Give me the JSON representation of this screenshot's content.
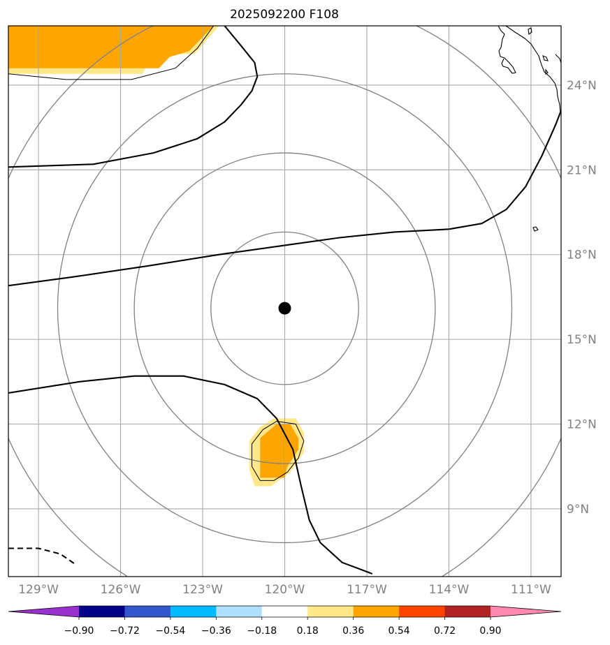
{
  "chart_data": {
    "type": "contour-map",
    "title": "2025092200 F108",
    "projection": "Plate Carree (lon/lat)",
    "lon_range": [
      -130.1,
      -109.9
    ],
    "lat_range": [
      6.6,
      26.1
    ],
    "xlabel": "",
    "ylabel": "",
    "grid": true,
    "lon_ticks": [
      -129,
      -126,
      -123,
      -120,
      -117,
      -114,
      -111
    ],
    "lon_tick_labels": [
      "129°W",
      "126°W",
      "123°W",
      "120°W",
      "117°W",
      "114°W",
      "111°W"
    ],
    "lat_ticks": [
      9,
      12,
      15,
      18,
      21,
      24
    ],
    "lat_tick_labels": [
      "9°N",
      "12°N",
      "15°N",
      "18°N",
      "21°N",
      "24°N"
    ],
    "center": {
      "lon": -120.0,
      "lat": 16.1
    },
    "range_rings_deg": [
      2.7,
      5.5,
      8.3,
      11.1
    ],
    "colorbar": {
      "boundaries": [
        -0.9,
        -0.72,
        -0.54,
        -0.36,
        -0.18,
        0.18,
        0.36,
        0.54,
        0.72,
        0.9
      ],
      "tick_labels": [
        "−0.90",
        "−0.72",
        "−0.54",
        "−0.36",
        "−0.18",
        "0.18",
        "0.36",
        "0.54",
        "0.72",
        "0.90"
      ],
      "under_color": "#9932cc",
      "over_color": "#ff88b0",
      "colors": [
        "#000088",
        "#3355cc",
        "#00bbff",
        "#b0e0ff",
        "#ffffff",
        "#ffe88a",
        "#ffa500",
        "#ff4400",
        "#b22222"
      ],
      "extend": "both"
    },
    "filled_regions": [
      {
        "level": 0.18,
        "color": "#ffe88a",
        "polygon": [
          [
            -130.1,
            26.1
          ],
          [
            -122.4,
            26.1
          ],
          [
            -123.3,
            25.1
          ],
          [
            -124.8,
            25.1
          ],
          [
            -125.2,
            24.4
          ],
          [
            -130.1,
            24.4
          ]
        ]
      },
      {
        "level": 0.36,
        "color": "#ffa500",
        "polygon": [
          [
            -130.1,
            26.1
          ],
          [
            -122.6,
            26.1
          ],
          [
            -123.5,
            25.2
          ],
          [
            -124.2,
            25.0
          ],
          [
            -124.6,
            24.6
          ],
          [
            -130.1,
            24.6
          ]
        ]
      },
      {
        "level": 0.18,
        "color": "#ffe88a",
        "polygon": [
          [
            -120.4,
            12.2
          ],
          [
            -119.6,
            12.2
          ],
          [
            -119.3,
            11.7
          ],
          [
            -119.3,
            11.0
          ],
          [
            -119.8,
            10.3
          ],
          [
            -120.5,
            9.8
          ],
          [
            -121.1,
            9.8
          ],
          [
            -121.3,
            10.4
          ],
          [
            -121.3,
            11.4
          ],
          [
            -120.9,
            11.9
          ]
        ]
      },
      {
        "level": 0.36,
        "color": "#ffa500",
        "polygon": [
          [
            -120.3,
            12.0
          ],
          [
            -119.8,
            12.0
          ],
          [
            -119.5,
            11.5
          ],
          [
            -119.5,
            11.1
          ],
          [
            -119.9,
            10.5
          ],
          [
            -120.0,
            10.1
          ],
          [
            -120.9,
            10.1
          ],
          [
            -120.9,
            11.5
          ]
        ]
      }
    ],
    "contour_lines": [
      {
        "style": "solid",
        "points": [
          [
            -122.2,
            26.1
          ],
          [
            -121.6,
            25.4
          ],
          [
            -121.1,
            24.8
          ],
          [
            -121.0,
            24.3
          ],
          [
            -121.2,
            23.8
          ],
          [
            -121.6,
            23.3
          ],
          [
            -122.2,
            22.7
          ],
          [
            -123.2,
            22.1
          ],
          [
            -124.8,
            21.6
          ],
          [
            -127.0,
            21.2
          ],
          [
            -130.1,
            21.1
          ]
        ]
      },
      {
        "style": "solid",
        "points": [
          [
            -130.1,
            16.9
          ],
          [
            -127.8,
            17.2
          ],
          [
            -125.0,
            17.6
          ],
          [
            -122.4,
            18.0
          ],
          [
            -120.2,
            18.3
          ],
          [
            -118.0,
            18.6
          ],
          [
            -116.0,
            18.8
          ],
          [
            -114.0,
            18.9
          ],
          [
            -112.8,
            19.1
          ],
          [
            -111.9,
            19.6
          ],
          [
            -111.2,
            20.4
          ],
          [
            -110.6,
            21.5
          ],
          [
            -110.1,
            22.6
          ],
          [
            -109.9,
            23.1
          ]
        ]
      },
      {
        "style": "solid",
        "points": [
          [
            -130.1,
            13.1
          ],
          [
            -127.5,
            13.5
          ],
          [
            -125.5,
            13.7
          ],
          [
            -123.7,
            13.7
          ],
          [
            -122.2,
            13.4
          ],
          [
            -121.0,
            12.9
          ],
          [
            -120.3,
            12.2
          ],
          [
            -119.7,
            11.1
          ],
          [
            -119.4,
            9.8
          ],
          [
            -119.1,
            8.6
          ],
          [
            -118.7,
            7.8
          ],
          [
            -117.9,
            7.1
          ],
          [
            -116.8,
            6.7
          ]
        ]
      },
      {
        "style": "thin",
        "points": [
          [
            -130.1,
            24.4
          ],
          [
            -128.0,
            24.2
          ],
          [
            -125.6,
            24.2
          ],
          [
            -124.0,
            24.6
          ],
          [
            -123.2,
            25.3
          ],
          [
            -122.6,
            26.1
          ]
        ]
      },
      {
        "style": "thin",
        "points": [
          [
            -120.3,
            12.1
          ],
          [
            -119.6,
            12.0
          ],
          [
            -119.3,
            11.4
          ],
          [
            -119.5,
            10.8
          ],
          [
            -119.9,
            10.3
          ],
          [
            -120.4,
            10.0
          ],
          [
            -120.9,
            10.0
          ],
          [
            -121.2,
            10.5
          ],
          [
            -121.2,
            11.3
          ],
          [
            -120.8,
            11.8
          ],
          [
            -120.3,
            12.1
          ]
        ]
      },
      {
        "style": "dashed",
        "points": [
          [
            -130.1,
            7.6
          ],
          [
            -129.0,
            7.6
          ],
          [
            -128.2,
            7.4
          ],
          [
            -127.6,
            7.0
          ]
        ]
      }
    ]
  }
}
